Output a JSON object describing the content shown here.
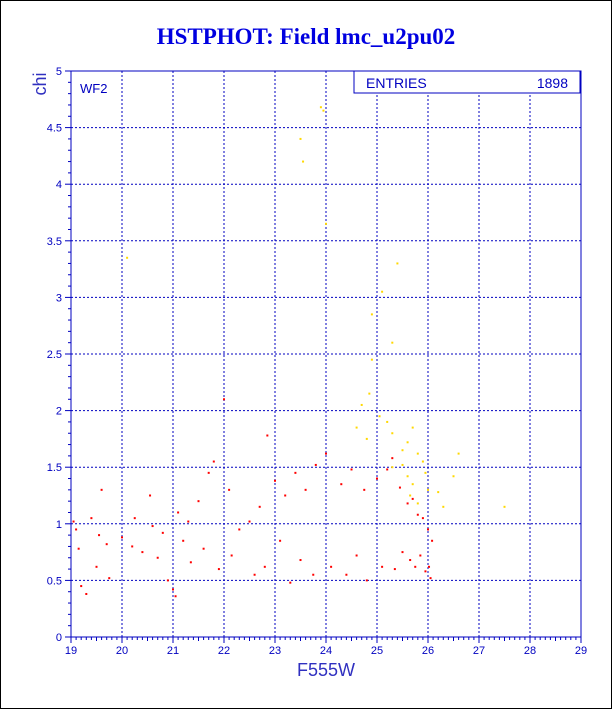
{
  "chart_data": {
    "type": "scatter",
    "title": "HSTPHOT: Field lmc_u2pu02",
    "panel_label": "WF2",
    "xlabel": "F555W",
    "ylabel": "chi",
    "xlim": [
      19,
      29
    ],
    "ylim": [
      0,
      5
    ],
    "xticks": [
      "19",
      "20",
      "21",
      "22",
      "23",
      "24",
      "25",
      "26",
      "27",
      "28",
      "29"
    ],
    "yticks": [
      "0",
      "0.5",
      "1",
      "1.5",
      "2",
      "2.5",
      "3",
      "3.5",
      "4",
      "4.5",
      "5"
    ],
    "grid": true,
    "stats": {
      "label": "ENTRIES",
      "value": "1898"
    },
    "colors": {
      "axis": "#0000c0",
      "grid": "#0000c0",
      "main_points": "#ff0000",
      "outlier_points": "#ffd800"
    },
    "series": [
      {
        "color": "#ff0000",
        "points": [
          [
            19.05,
            1.02
          ],
          [
            19.1,
            0.95
          ],
          [
            19.15,
            0.78
          ],
          [
            19.2,
            0.45
          ],
          [
            19.3,
            0.38
          ],
          [
            19.4,
            1.05
          ],
          [
            19.5,
            0.62
          ],
          [
            19.55,
            0.9
          ],
          [
            19.6,
            1.3
          ],
          [
            19.7,
            0.82
          ],
          [
            19.75,
            0.52
          ],
          [
            20.0,
            0.88
          ],
          [
            20.2,
            0.8
          ],
          [
            20.25,
            1.05
          ],
          [
            20.4,
            0.75
          ],
          [
            20.55,
            1.25
          ],
          [
            20.6,
            0.98
          ],
          [
            20.7,
            0.7
          ],
          [
            20.8,
            0.92
          ],
          [
            20.9,
            0.5
          ],
          [
            21.0,
            0.42
          ],
          [
            21.05,
            0.36
          ],
          [
            21.1,
            1.1
          ],
          [
            21.2,
            0.85
          ],
          [
            21.3,
            1.02
          ],
          [
            21.35,
            0.66
          ],
          [
            21.5,
            1.2
          ],
          [
            21.6,
            0.78
          ],
          [
            21.7,
            1.45
          ],
          [
            21.8,
            1.55
          ],
          [
            21.9,
            0.6
          ],
          [
            22.0,
            2.1
          ],
          [
            22.1,
            1.3
          ],
          [
            22.15,
            0.72
          ],
          [
            22.3,
            0.95
          ],
          [
            22.5,
            1.02
          ],
          [
            22.6,
            0.55
          ],
          [
            22.7,
            1.15
          ],
          [
            22.8,
            0.62
          ],
          [
            22.85,
            1.78
          ],
          [
            23.0,
            1.38
          ],
          [
            23.1,
            0.85
          ],
          [
            23.2,
            1.25
          ],
          [
            23.3,
            0.48
          ],
          [
            23.4,
            1.45
          ],
          [
            23.5,
            0.68
          ],
          [
            23.6,
            1.3
          ],
          [
            23.75,
            0.55
          ],
          [
            23.8,
            1.52
          ],
          [
            24.0,
            1.62
          ],
          [
            24.1,
            0.62
          ],
          [
            24.3,
            1.35
          ],
          [
            24.4,
            0.55
          ],
          [
            24.5,
            1.48
          ],
          [
            24.6,
            0.72
          ],
          [
            24.75,
            1.3
          ],
          [
            24.8,
            0.5
          ],
          [
            25.0,
            1.4
          ],
          [
            25.1,
            0.62
          ],
          [
            25.2,
            1.48
          ],
          [
            25.3,
            1.58
          ],
          [
            25.35,
            0.6
          ],
          [
            25.45,
            1.32
          ],
          [
            25.5,
            0.75
          ],
          [
            25.6,
            1.18
          ],
          [
            25.65,
            0.68
          ],
          [
            25.7,
            1.22
          ],
          [
            25.75,
            0.62
          ],
          [
            25.8,
            1.08
          ],
          [
            25.85,
            0.72
          ],
          [
            25.9,
            1.05
          ],
          [
            25.95,
            0.58
          ],
          [
            26.0,
            0.95
          ],
          [
            26.02,
            0.62
          ],
          [
            26.05,
            0.52
          ],
          [
            26.08,
            0.85
          ]
        ]
      },
      {
        "color": "#ffd800",
        "points": [
          [
            20.1,
            3.35
          ],
          [
            23.5,
            4.4
          ],
          [
            23.55,
            4.2
          ],
          [
            23.9,
            4.68
          ],
          [
            23.95,
            4.65
          ],
          [
            24.0,
            3.65
          ],
          [
            24.9,
            2.85
          ],
          [
            25.1,
            3.05
          ],
          [
            25.3,
            2.6
          ],
          [
            25.4,
            3.3
          ],
          [
            24.85,
            2.15
          ],
          [
            24.9,
            2.45
          ],
          [
            25.05,
            1.95
          ],
          [
            24.6,
            1.85
          ],
          [
            24.7,
            2.05
          ],
          [
            24.8,
            1.75
          ],
          [
            25.2,
            1.9
          ],
          [
            25.3,
            1.8
          ],
          [
            25.5,
            1.65
          ],
          [
            25.6,
            1.72
          ],
          [
            25.7,
            1.85
          ],
          [
            25.8,
            1.62
          ],
          [
            25.6,
            1.42
          ],
          [
            25.7,
            1.35
          ],
          [
            25.9,
            1.55
          ],
          [
            25.95,
            1.45
          ],
          [
            26.2,
            1.28
          ],
          [
            26.3,
            1.15
          ],
          [
            26.5,
            1.42
          ],
          [
            26.6,
            1.62
          ],
          [
            27.5,
            1.15
          ],
          [
            26.0,
            1.3
          ],
          [
            25.3,
            1.5
          ],
          [
            25.5,
            1.52
          ],
          [
            25.65,
            1.25
          ],
          [
            25.8,
            1.18
          ]
        ]
      }
    ]
  }
}
